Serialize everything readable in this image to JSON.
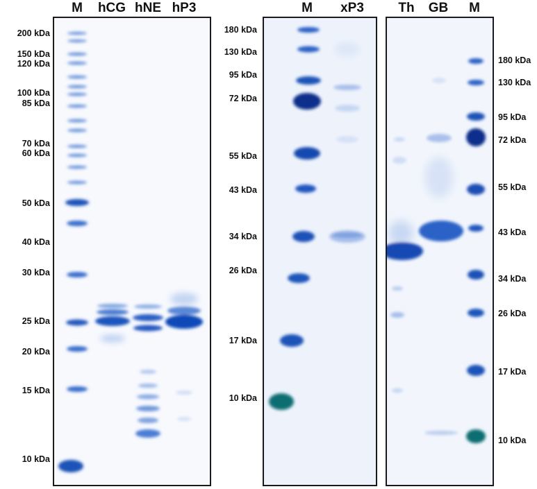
{
  "gel1": {
    "lanes": [
      "M",
      "hCG",
      "hNE",
      "hP3"
    ],
    "markers": [
      "200 kDa",
      "150 kDa",
      "120 kDa",
      "100 kDa",
      "85 kDa",
      "70 kDa",
      "60 kDa",
      "50 kDa",
      "40 kDa",
      "30 kDa",
      "25 kDa",
      "20 kDa",
      "15 kDa",
      "10 kDa"
    ]
  },
  "gel2": {
    "lanes": [
      "M",
      "xP3"
    ],
    "markers": [
      "180 kDa",
      "130 kDa",
      "95 kDa",
      "72 kDa",
      "55 kDa",
      "43 kDa",
      "34 kDa",
      "26 kDa",
      "17 kDa",
      "10 kDa"
    ]
  },
  "gel3": {
    "lanes": [
      "Th",
      "GB",
      "M"
    ],
    "markers": [
      "180 kDa",
      "130 kDa",
      "95 kDa",
      "72 kDa",
      "55 kDa",
      "43 kDa",
      "34 kDa",
      "26 kDa",
      "17 kDa",
      "10 kDa"
    ]
  },
  "colors": {
    "band_dark": "#0a2f8a",
    "band_mid": "#2a63c8",
    "band_light": "#7fa4e0",
    "band_teal": "#0c6e72",
    "gel_bg": "#f7f9fd"
  }
}
